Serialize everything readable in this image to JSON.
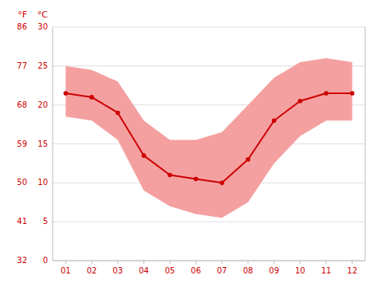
{
  "chart_data": {
    "type": "line",
    "x": [
      1,
      2,
      3,
      4,
      5,
      6,
      7,
      8,
      9,
      10,
      11,
      12
    ],
    "xlim": [
      0.5,
      12.5
    ],
    "xticks": [
      {
        "value": 1,
        "label": "01"
      },
      {
        "value": 2,
        "label": "02"
      },
      {
        "value": 3,
        "label": "03"
      },
      {
        "value": 4,
        "label": "04"
      },
      {
        "value": 5,
        "label": "05"
      },
      {
        "value": 6,
        "label": "06"
      },
      {
        "value": 7,
        "label": "07"
      },
      {
        "value": 8,
        "label": "08"
      },
      {
        "value": 9,
        "label": "09"
      },
      {
        "value": 10,
        "label": "10"
      },
      {
        "value": 11,
        "label": "11"
      },
      {
        "value": 12,
        "label": "12"
      }
    ],
    "ylabel": "°C",
    "ylim": [
      0,
      30
    ],
    "yticks": [
      0,
      5,
      10,
      15,
      20,
      25,
      30
    ],
    "y2label": "°F",
    "y2lim": [
      32,
      86
    ],
    "y2ticks": [
      32,
      41,
      50,
      59,
      68,
      77,
      86
    ],
    "grid": true,
    "color": "#cc0000",
    "series": [
      {
        "type": "band",
        "color": "#f5a0a0",
        "low": [
          18.5,
          18.0,
          15.5,
          9.0,
          7.0,
          6.0,
          5.5,
          7.5,
          12.5,
          16.0,
          18.0,
          18.0
        ],
        "high": [
          25.0,
          24.5,
          23.0,
          18.0,
          15.5,
          15.5,
          16.5,
          20.0,
          23.5,
          25.5,
          26.0,
          25.5
        ]
      },
      {
        "type": "line",
        "color": "#cc0000",
        "marker": "circle",
        "values": [
          21.5,
          21.0,
          19.0,
          13.5,
          11.0,
          10.5,
          10.0,
          13.0,
          18.0,
          20.5,
          21.5,
          21.5
        ]
      }
    ]
  }
}
